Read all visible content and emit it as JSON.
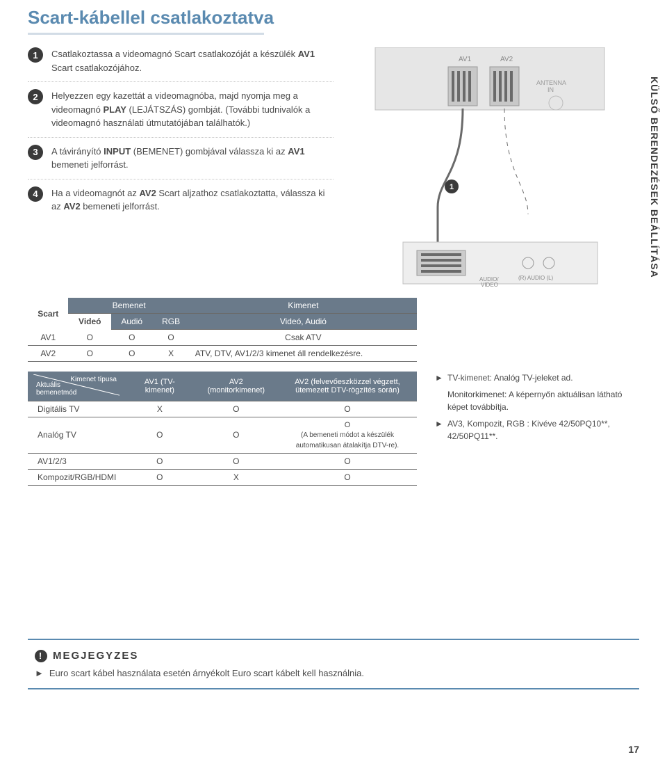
{
  "title": "Scart-kábellel csatlakoztatva",
  "side_tab": "KÜLSŐ BERENDEZÉSEK BEÁLLÍTÁSA",
  "steps": [
    {
      "num": "1",
      "html": "Csatlakoztassa a videomagnó Scart csatlakozóját a készülék <b>AV1</b> Scart csatlakozójához."
    },
    {
      "num": "2",
      "html": "Helyezzen egy kazettát a videomagnóba, majd nyomja meg a videomagnó <b>PLAY</b> (LEJÁTSZÁS) gombját. (További tudnivalók a videomagnó használati útmutatójában találhatók.)"
    },
    {
      "num": "3",
      "html": "A távirányító <b>INPUT</b> (BEMENET) gombjával válassza ki az <b>AV1</b> bemeneti jelforrást."
    },
    {
      "num": "4",
      "html": "Ha a videomagnót az <b>AV2</b> Scart aljzathoz csatlakoztatta, válassza ki az <b>AV2</b> bemeneti jelforrást."
    }
  ],
  "diagram_labels": {
    "top_ports": [
      "AV1",
      "AV2",
      "ANTENNA IN",
      "AUDIO/ VIDEO",
      "(R) AUDIO (L)"
    ],
    "marker": "1"
  },
  "scart_table": {
    "corner": "Scart",
    "group_input": "Bemenet",
    "group_output": "Kimenet",
    "headers": [
      "Videó",
      "Audió",
      "RGB",
      "Videó, Audió"
    ],
    "rows": [
      {
        "label": "AV1",
        "c1": "O",
        "c2": "O",
        "c3": "O",
        "c4": "Csak ATV"
      },
      {
        "label": "AV2",
        "c1": "O",
        "c2": "O",
        "c3": "X",
        "c4": "ATV, DTV, AV1/2/3 kimenet áll rendelkezésre."
      }
    ]
  },
  "kimenet_table": {
    "corner": "Aktuális bemenetmód \\ Kimenet típusa",
    "headers": [
      "AV1 (TV-kimenet)",
      "AV2 (monitorkimenet)",
      "AV2 (felvevőeszközzel végzett, ütemezett DTV-rögzítés során)"
    ],
    "rows": [
      {
        "label": "Digitális TV",
        "c1": "X",
        "c2": "O",
        "c3": "O"
      },
      {
        "label": "Analóg TV",
        "c1": "O",
        "c2": "O",
        "c3": "O\n(A bemeneti módot a készülék automatikusan átalakítja DTV-re)."
      },
      {
        "label": "AV1/2/3",
        "c1": "O",
        "c2": "O",
        "c3": "O"
      },
      {
        "label": "Kompozit/RGB/HDMI",
        "c1": "O",
        "c2": "X",
        "c3": "O"
      }
    ]
  },
  "right_notes": [
    "TV-kimenet: Analóg TV-jeleket ad.",
    "Monitorkimenet: A képernyőn aktuálisan látható képet továbbítja.",
    "AV3, Kompozit, RGB : Kivéve 42/50PQ10**, 42/50PQ11**."
  ],
  "note_box": {
    "title": "MEGJEGYZES",
    "text": "Euro scart kábel használata esetén árnyékolt Euro scart kábelt kell használnia."
  },
  "page_number": "17",
  "colors": {
    "title": "#5a8ab0",
    "th_bg": "#6a7a8a",
    "text": "#4a4a4a"
  }
}
